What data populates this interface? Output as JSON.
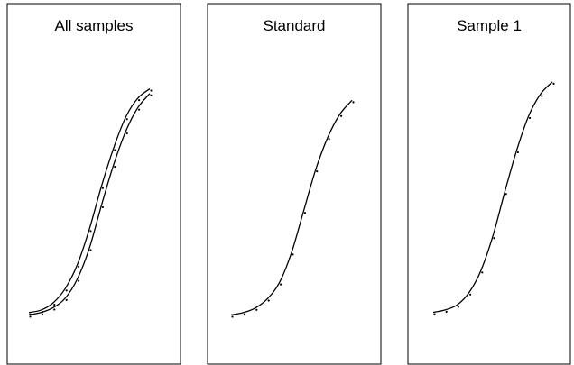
{
  "chart_data": [
    {
      "type": "line",
      "title": "All samples",
      "xlabel": "",
      "ylabel": "",
      "xlim": [
        0,
        10
      ],
      "ylim": [
        0,
        100
      ],
      "grid": false,
      "series": [
        {
          "line": "sigmoid",
          "x": [
            0,
            1,
            2,
            3,
            4,
            5,
            6,
            7,
            8,
            9,
            10
          ],
          "values": [
            2,
            3,
            6,
            12,
            22,
            37,
            55,
            71,
            84,
            92,
            96
          ]
        },
        {
          "line": "sigmoid",
          "x": [
            0,
            1,
            2,
            3,
            4,
            5,
            6,
            7,
            8,
            9,
            10
          ],
          "values": [
            1,
            2,
            4,
            8,
            16,
            29,
            47,
            64,
            78,
            88,
            94
          ]
        }
      ]
    },
    {
      "type": "line",
      "title": "Standard",
      "xlabel": "",
      "ylabel": "",
      "xlim": [
        0,
        10
      ],
      "ylim": [
        0,
        100
      ],
      "grid": false,
      "series": [
        {
          "line": "sigmoid",
          "x": [
            0,
            1,
            2,
            3,
            4,
            5,
            6,
            7,
            8,
            9,
            10
          ],
          "values": [
            1,
            2,
            4,
            8,
            15,
            28,
            46,
            64,
            78,
            88,
            94
          ]
        }
      ]
    },
    {
      "type": "line",
      "title": "Sample 1",
      "xlabel": "",
      "ylabel": "",
      "xlim": [
        0,
        10
      ],
      "ylim": [
        0,
        100
      ],
      "grid": false,
      "series": [
        {
          "line": "sigmoid",
          "x": [
            0,
            1,
            2,
            3,
            4,
            5,
            6,
            7,
            8,
            9,
            10
          ],
          "values": [
            2,
            3,
            5,
            10,
            19,
            33,
            51,
            68,
            82,
            91,
            96
          ]
        }
      ]
    }
  ]
}
